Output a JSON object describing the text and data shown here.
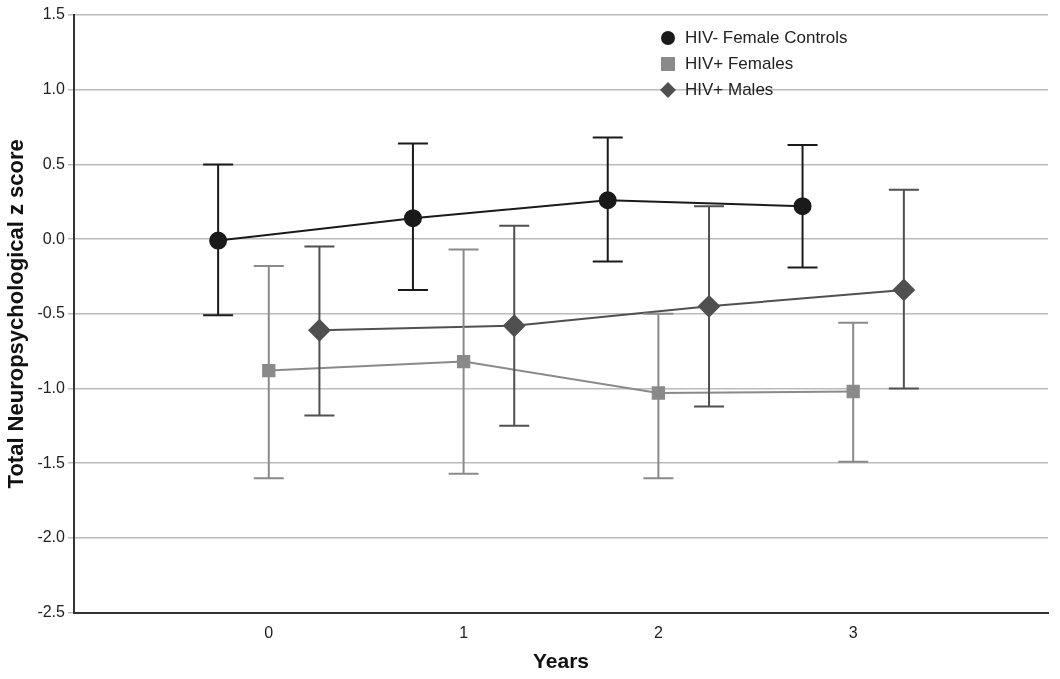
{
  "chart_data": {
    "type": "line",
    "xlabel": "Years",
    "ylabel": "Total Neuropsychological z score",
    "xlim": [
      -1,
      4
    ],
    "xticks": [
      0,
      1,
      2,
      3
    ],
    "ylim": [
      -2.5,
      1.5
    ],
    "yticks": [
      {
        "value": -2.5,
        "label": "-2.5"
      },
      {
        "value": -2,
        "label": "-2.0"
      },
      {
        "value": -1.5,
        "label": "-1.5"
      },
      {
        "value": -1,
        "label": "-1.0"
      },
      {
        "value": -0.5,
        "label": "-0.5"
      },
      {
        "value": 0,
        "label": "0.0"
      },
      {
        "value": 0.5,
        "label": "0.5"
      },
      {
        "value": 1,
        "label": "1.0"
      },
      {
        "value": 1.5,
        "label": "1.5"
      }
    ],
    "grid": "y",
    "legend": "top right",
    "line_style": "solid",
    "series": [
      {
        "name": "HIV- Female Controls",
        "color": "#1a1a1a",
        "marker": "circle",
        "x": [
          -0.26,
          0.74,
          1.74,
          2.74
        ],
        "values": [
          -0.01,
          0.14,
          0.26,
          0.22
        ],
        "errors": [
          [
            -0.51,
            0.5
          ],
          [
            -0.34,
            0.64
          ],
          [
            -0.15,
            0.68
          ],
          [
            -0.19,
            0.63
          ]
        ]
      },
      {
        "name": "HIV+ Females",
        "color": "#8a8a8a",
        "marker": "square",
        "x": [
          0,
          1,
          2,
          3
        ],
        "values": [
          -0.88,
          -0.82,
          -1.03,
          -1.02
        ],
        "errors": [
          [
            -1.6,
            -0.18
          ],
          [
            -1.57,
            -0.07
          ],
          [
            -1.6,
            -0.5
          ],
          [
            -1.49,
            -0.56
          ]
        ]
      },
      {
        "name": "HIV+ Males",
        "color": "#505050",
        "marker": "diamond",
        "x": [
          0.26,
          1.26,
          2.26,
          3.26
        ],
        "values": [
          -0.61,
          -0.58,
          -0.45,
          -0.34
        ],
        "errors": [
          [
            -1.18,
            -0.05
          ],
          [
            -1.25,
            0.09
          ],
          [
            -1.12,
            0.22
          ],
          [
            -1.0,
            0.33
          ]
        ]
      }
    ]
  }
}
